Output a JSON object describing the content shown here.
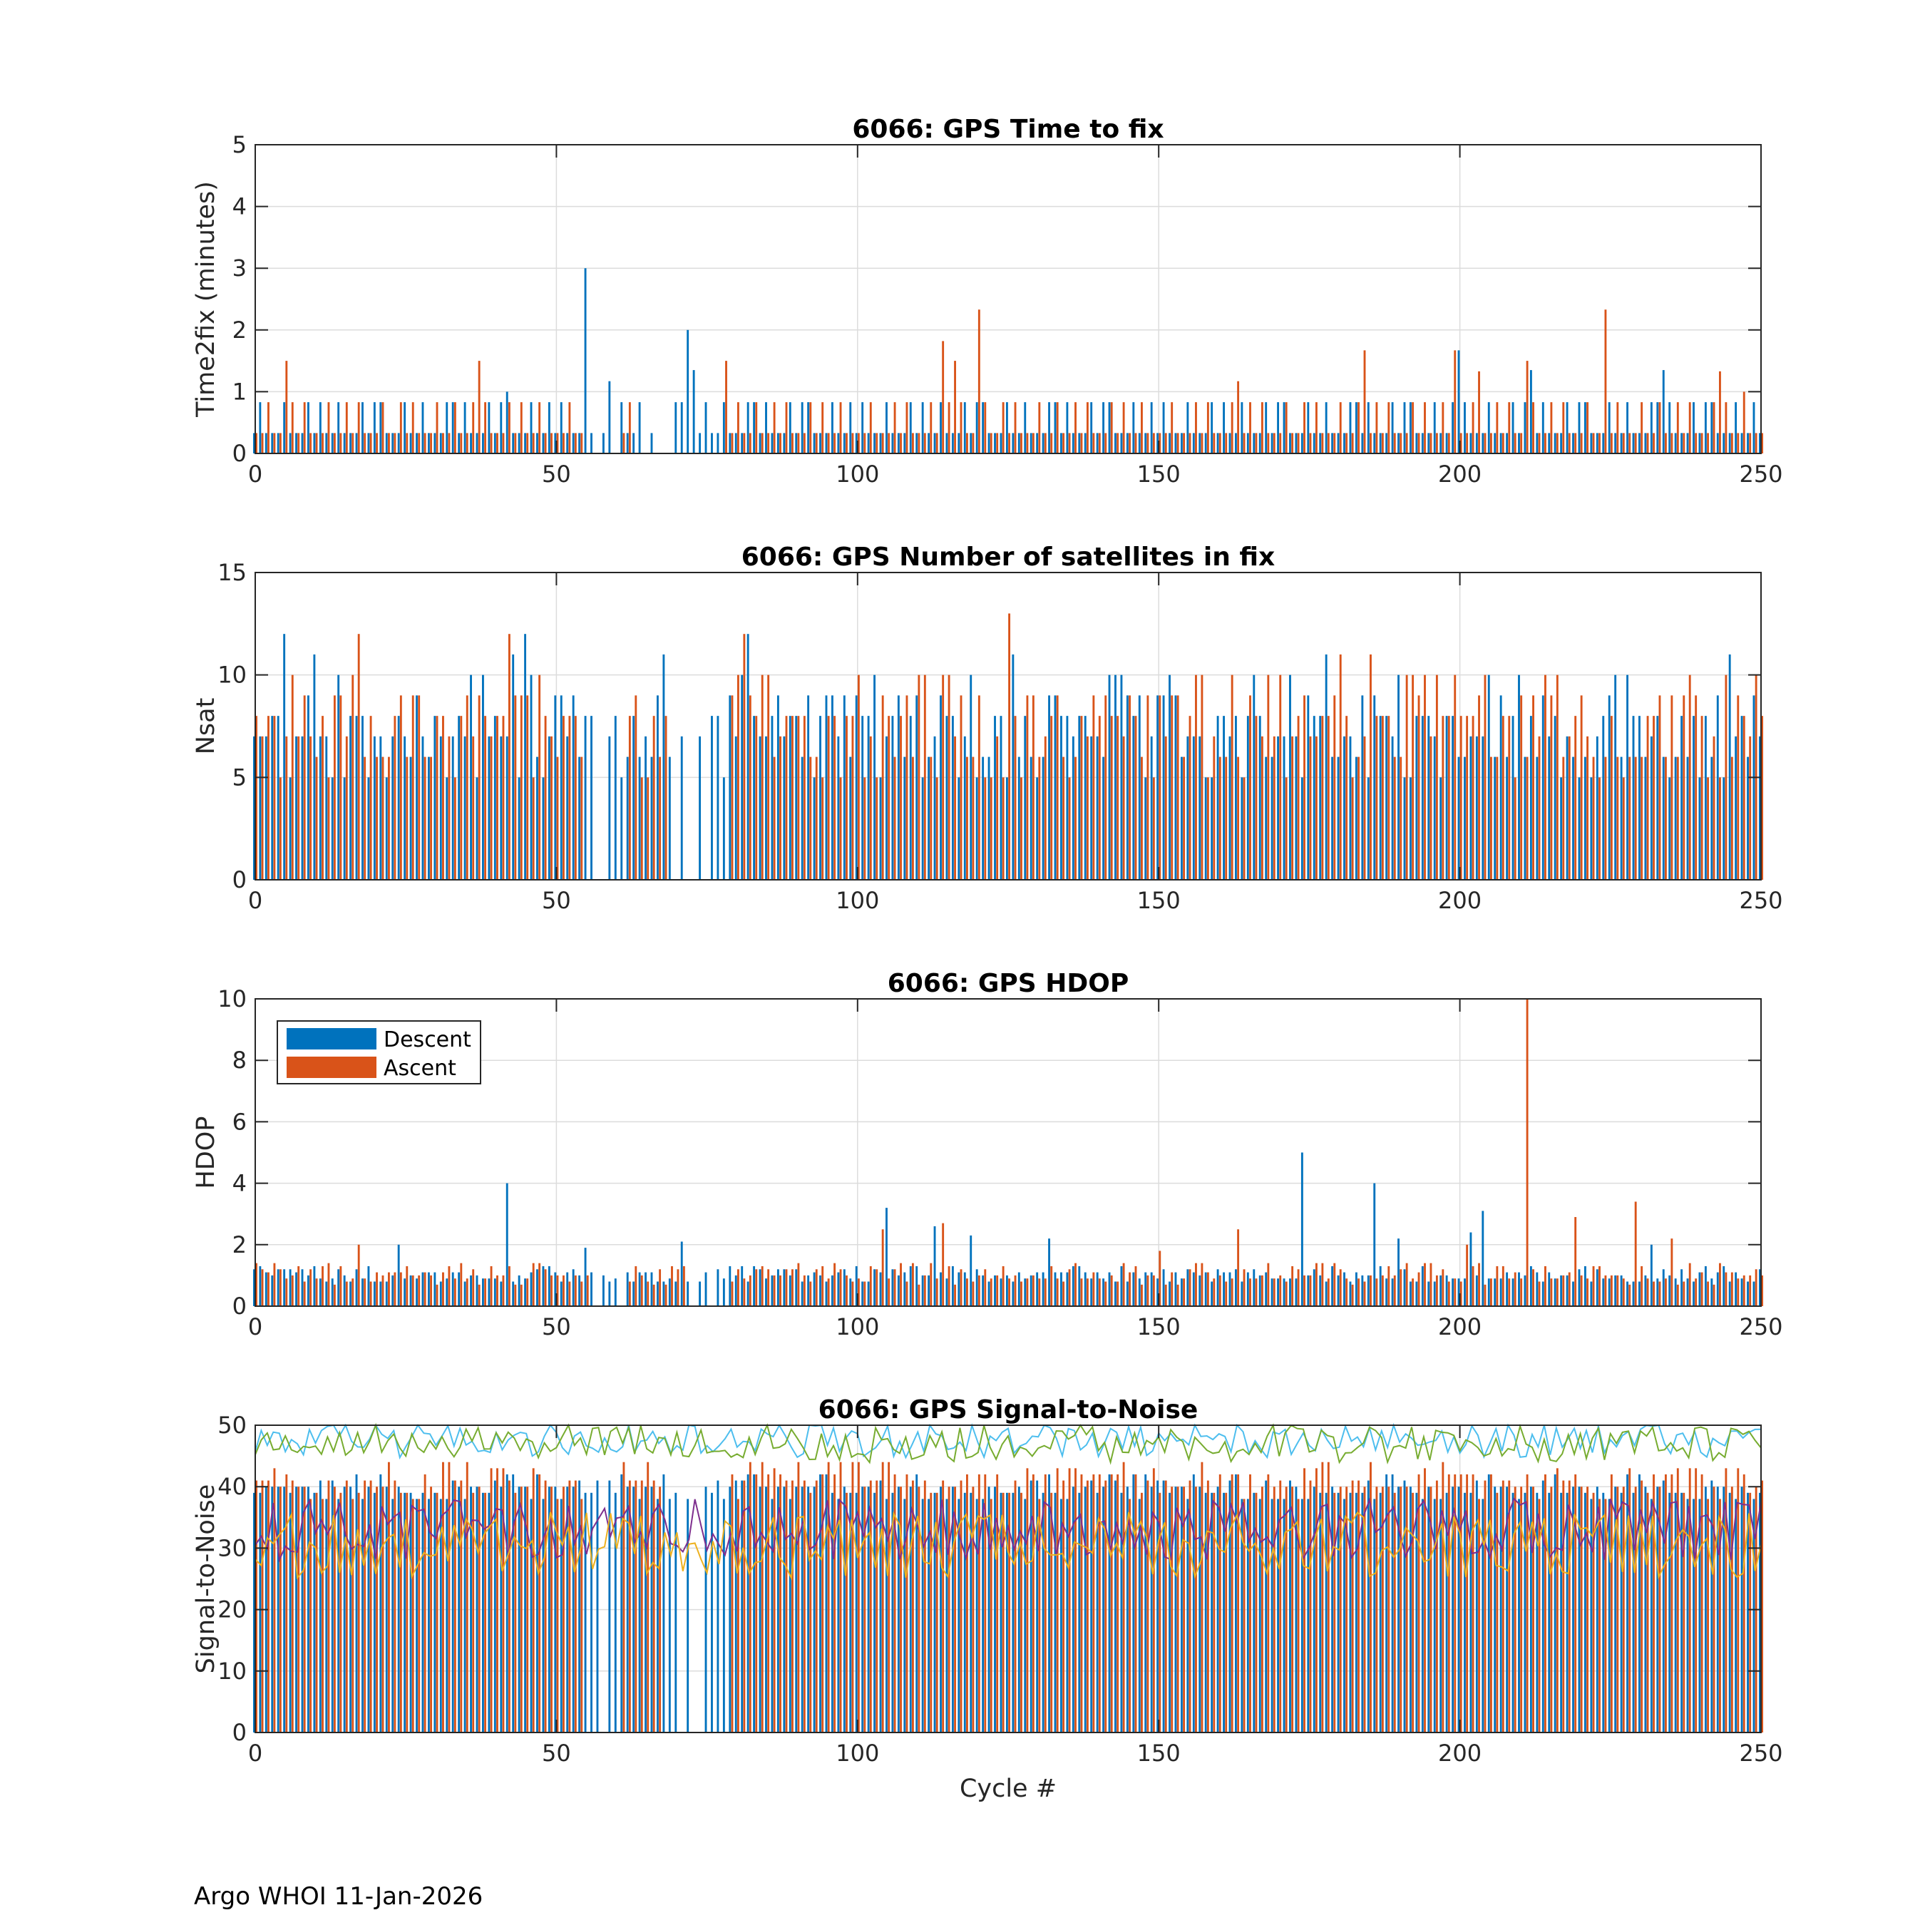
{
  "footer": "Argo WHOI 11-Jan-2026",
  "colors": {
    "descent": "#0072BD",
    "ascent": "#D95319",
    "snr_lines": [
      "#4DBEEE",
      "#77AC30",
      "#7E2F8E",
      "#EDB120"
    ]
  },
  "chart_data": [
    {
      "type": "bar",
      "title": "6066: GPS Time to fix",
      "xlabel": "",
      "ylabel": "Time2fix (minutes)",
      "xlim": [
        0,
        250
      ],
      "ylim": [
        0,
        5
      ],
      "xticks": [
        0,
        50,
        100,
        150,
        200,
        250
      ],
      "yticks": [
        0,
        1,
        2,
        3,
        4,
        5
      ],
      "grid": true,
      "series": [
        {
          "name": "Descent",
          "baseline": 0.33,
          "alt": 0.83,
          "pattern": [
            0,
            1,
            0,
            0,
            0,
            1,
            0,
            0,
            0,
            1,
            0,
            1,
            0,
            0,
            1,
            0,
            0,
            0,
            1,
            0,
            1,
            1,
            0,
            0,
            0,
            1,
            0,
            0,
            1,
            0,
            0,
            0,
            1,
            1,
            0,
            1,
            0,
            0,
            0,
            1,
            0,
            1,
            1,
            0,
            0,
            0,
            1,
            0,
            0,
            1
          ],
          "spikes": [
            [
              55,
              3.0
            ],
            [
              72,
              2.0
            ],
            [
              73,
              1.35
            ],
            [
              59,
              1.17
            ],
            [
              42,
              1.0
            ],
            [
              234,
              1.35
            ],
            [
              212,
              1.35
            ],
            [
              200,
              1.67
            ]
          ],
          "gaps": [
            [
              56,
              60
            ],
            [
              63,
              76
            ]
          ]
        },
        {
          "name": "Ascent",
          "baseline": 0.33,
          "alt": 0.83,
          "pattern": [
            0,
            0,
            1,
            0,
            0,
            0,
            1,
            0,
            1,
            0,
            0,
            0,
            1,
            0,
            0,
            1,
            0,
            1,
            0,
            0,
            0,
            1,
            0,
            0,
            1,
            0,
            1,
            0,
            0,
            0,
            1,
            0,
            0,
            1,
            0,
            0,
            1,
            0,
            1,
            0,
            0,
            0,
            1,
            0,
            1,
            0,
            0,
            1,
            0,
            0
          ],
          "spikes": [
            [
              5,
              1.5
            ],
            [
              37,
              1.5
            ],
            [
              78,
              1.5
            ],
            [
              114,
              1.82
            ],
            [
              116,
              1.5
            ],
            [
              120,
              2.33
            ],
            [
              163,
              1.17
            ],
            [
              184,
              1.67
            ],
            [
              199,
              1.67
            ],
            [
              203,
              1.33
            ],
            [
              211,
              1.5
            ],
            [
              224,
              2.33
            ],
            [
              243,
              1.33
            ],
            [
              247,
              1.0
            ]
          ],
          "gaps": [
            [
              55,
              60
            ],
            [
              63,
              78
            ]
          ]
        }
      ]
    },
    {
      "type": "bar",
      "title": "6066: GPS Number of satellites in fix",
      "xlabel": "",
      "ylabel": "Nsat",
      "xlim": [
        0,
        250
      ],
      "ylim": [
        0,
        15
      ],
      "xticks": [
        0,
        50,
        100,
        150,
        200,
        250
      ],
      "yticks": [
        0,
        5,
        10,
        15
      ],
      "grid": true,
      "series": [
        {
          "name": "Descent",
          "levels": [
            7,
            8,
            6,
            9,
            5,
            7,
            8,
            10,
            6,
            7,
            8,
            5,
            9,
            7,
            6,
            8
          ],
          "spikes": [
            [
              5,
              12
            ],
            [
              10,
              11
            ],
            [
              45,
              12
            ],
            [
              43,
              11
            ],
            [
              68,
              11
            ],
            [
              82,
              12
            ],
            [
              103,
              10
            ],
            [
              126,
              11
            ],
            [
              178,
              11
            ],
            [
              205,
              10
            ],
            [
              245,
              11
            ]
          ],
          "gaps": [
            [
              56,
              60
            ],
            [
              70,
              77
            ]
          ]
        },
        {
          "name": "Ascent",
          "levels": [
            8,
            6,
            9,
            7,
            5,
            10,
            7,
            8,
            6,
            9,
            5,
            8,
            7,
            10,
            6,
            8,
            9
          ],
          "spikes": [
            [
              17,
              12
            ],
            [
              42,
              12
            ],
            [
              81,
              12
            ],
            [
              125,
              13
            ],
            [
              180,
              11
            ],
            [
              185,
              11
            ],
            [
              244,
              10
            ]
          ],
          "gaps": [
            [
              55,
              61
            ],
            [
              69,
              78
            ]
          ]
        }
      ]
    },
    {
      "type": "bar",
      "title": "6066: GPS HDOP",
      "xlabel": "",
      "ylabel": "HDOP",
      "xlim": [
        0,
        250
      ],
      "ylim": [
        0,
        10
      ],
      "xticks": [
        0,
        50,
        100,
        150,
        200,
        250
      ],
      "yticks": [
        0,
        2,
        4,
        6,
        8,
        10
      ],
      "grid": true,
      "legend": {
        "position": "top-left",
        "entries": [
          "Descent",
          "Ascent"
        ]
      },
      "series": [
        {
          "name": "Descent",
          "levels": [
            1.0,
            0.9,
            1.1,
            0.8,
            1.2,
            0.9,
            1.0,
            1.3,
            0.8,
            1.1
          ],
          "spikes": [
            [
              42,
              4.0
            ],
            [
              24,
              2.0
            ],
            [
              55,
              1.9
            ],
            [
              71,
              2.1
            ],
            [
              105,
              3.2
            ],
            [
              113,
              2.6
            ],
            [
              119,
              2.3
            ],
            [
              132,
              2.2
            ],
            [
              174,
              5.0
            ],
            [
              186,
              4.0
            ],
            [
              190,
              2.2
            ],
            [
              204,
              3.1
            ],
            [
              202,
              2.4
            ],
            [
              232,
              2.0
            ]
          ],
          "gaps": [
            [
              57,
              61
            ],
            [
              73,
              76
            ]
          ]
        },
        {
          "name": "Ascent",
          "levels": [
            0.9,
            1.2,
            0.8,
            1.0,
            1.4,
            0.9,
            1.1,
            0.7,
            1.3,
            1.0
          ],
          "spikes": [
            [
              211,
              10.0
            ],
            [
              17,
              2.0
            ],
            [
              104,
              2.5
            ],
            [
              114,
              2.7
            ],
            [
              163,
              2.5
            ],
            [
              201,
              2.0
            ],
            [
              219,
              2.9
            ],
            [
              229,
              3.4
            ],
            [
              235,
              2.2
            ],
            [
              150,
              1.8
            ]
          ],
          "gaps": [
            [
              56,
              61
            ],
            [
              72,
              78
            ]
          ]
        }
      ]
    },
    {
      "type": "bar",
      "title": "6066: GPS Signal-to-Noise",
      "xlabel": "Cycle #",
      "ylabel": "Signal-to-Noise",
      "xlim": [
        0,
        250
      ],
      "ylim": [
        0,
        50
      ],
      "xticks": [
        0,
        50,
        100,
        150,
        200,
        250
      ],
      "yticks": [
        0,
        10,
        20,
        30,
        40,
        50
      ],
      "grid": true,
      "series": [
        {
          "name": "Descent",
          "levels": [
            39,
            40,
            38,
            41,
            39,
            40,
            42,
            38,
            39,
            40
          ],
          "gaps": [
            [
              56,
              59
            ],
            [
              71,
              74
            ]
          ]
        },
        {
          "name": "Ascent",
          "levels": [
            40,
            42,
            39,
            41,
            43,
            40,
            38,
            42,
            41,
            44
          ],
          "gaps": [
            [
              55,
              60
            ],
            [
              68,
              78
            ]
          ]
        }
      ],
      "lines": [
        {
          "name": "",
          "mean": 47.5,
          "amp": 2.3,
          "color_index": 0
        },
        {
          "name": "",
          "mean": 47.0,
          "amp": 2.6,
          "color_index": 1
        },
        {
          "name": "",
          "mean": 33.0,
          "amp": 4.2,
          "color_index": 2
        },
        {
          "name": "",
          "mean": 30.5,
          "amp": 4.5,
          "color_index": 3
        }
      ]
    }
  ]
}
